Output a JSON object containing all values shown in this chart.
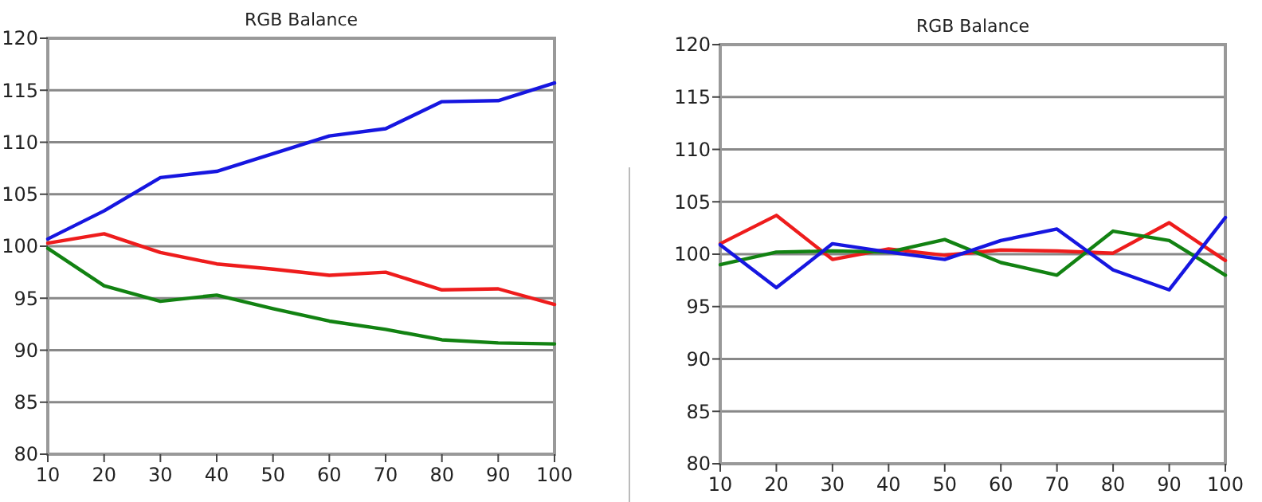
{
  "chart_data": [
    {
      "type": "line",
      "title": "RGB Balance",
      "x": [
        10,
        20,
        30,
        40,
        50,
        60,
        70,
        80,
        90,
        100
      ],
      "xlim": [
        10,
        100
      ],
      "xticks": [
        10,
        20,
        30,
        40,
        50,
        60,
        70,
        80,
        90,
        100
      ],
      "ylim": [
        80,
        120
      ],
      "yticks": [
        80,
        85,
        90,
        95,
        100,
        105,
        110,
        115,
        120
      ],
      "grid": "y",
      "series": [
        {
          "color": "#ee1c1c",
          "values": [
            100.3,
            101.2,
            99.4,
            98.3,
            97.8,
            97.2,
            97.5,
            95.8,
            95.9,
            94.4
          ]
        },
        {
          "color": "#128212",
          "values": [
            99.8,
            96.2,
            94.7,
            95.3,
            94.0,
            92.8,
            92.0,
            91.0,
            90.7,
            90.6
          ]
        },
        {
          "color": "#1616e0",
          "values": [
            100.7,
            103.4,
            106.6,
            107.2,
            108.9,
            110.6,
            111.3,
            113.9,
            114.0,
            115.7
          ]
        }
      ]
    },
    {
      "type": "line",
      "title": "RGB Balance",
      "x": [
        10,
        20,
        30,
        40,
        50,
        60,
        70,
        80,
        90,
        100
      ],
      "xlim": [
        10,
        100
      ],
      "xticks": [
        10,
        20,
        30,
        40,
        50,
        60,
        70,
        80,
        90,
        100
      ],
      "ylim": [
        80,
        120
      ],
      "yticks": [
        80,
        85,
        90,
        95,
        100,
        105,
        110,
        115,
        120
      ],
      "grid": "y",
      "series": [
        {
          "color": "#ee1c1c",
          "values": [
            101.0,
            103.7,
            99.5,
            100.5,
            99.9,
            100.4,
            100.3,
            100.1,
            103.0,
            99.4
          ]
        },
        {
          "color": "#128212",
          "values": [
            99.0,
            100.2,
            100.3,
            100.2,
            101.4,
            99.2,
            98.0,
            102.2,
            101.3,
            98.0
          ]
        },
        {
          "color": "#1616e0",
          "values": [
            100.9,
            96.8,
            101.0,
            100.2,
            99.5,
            101.3,
            102.4,
            98.5,
            96.6,
            103.5
          ]
        }
      ]
    }
  ]
}
